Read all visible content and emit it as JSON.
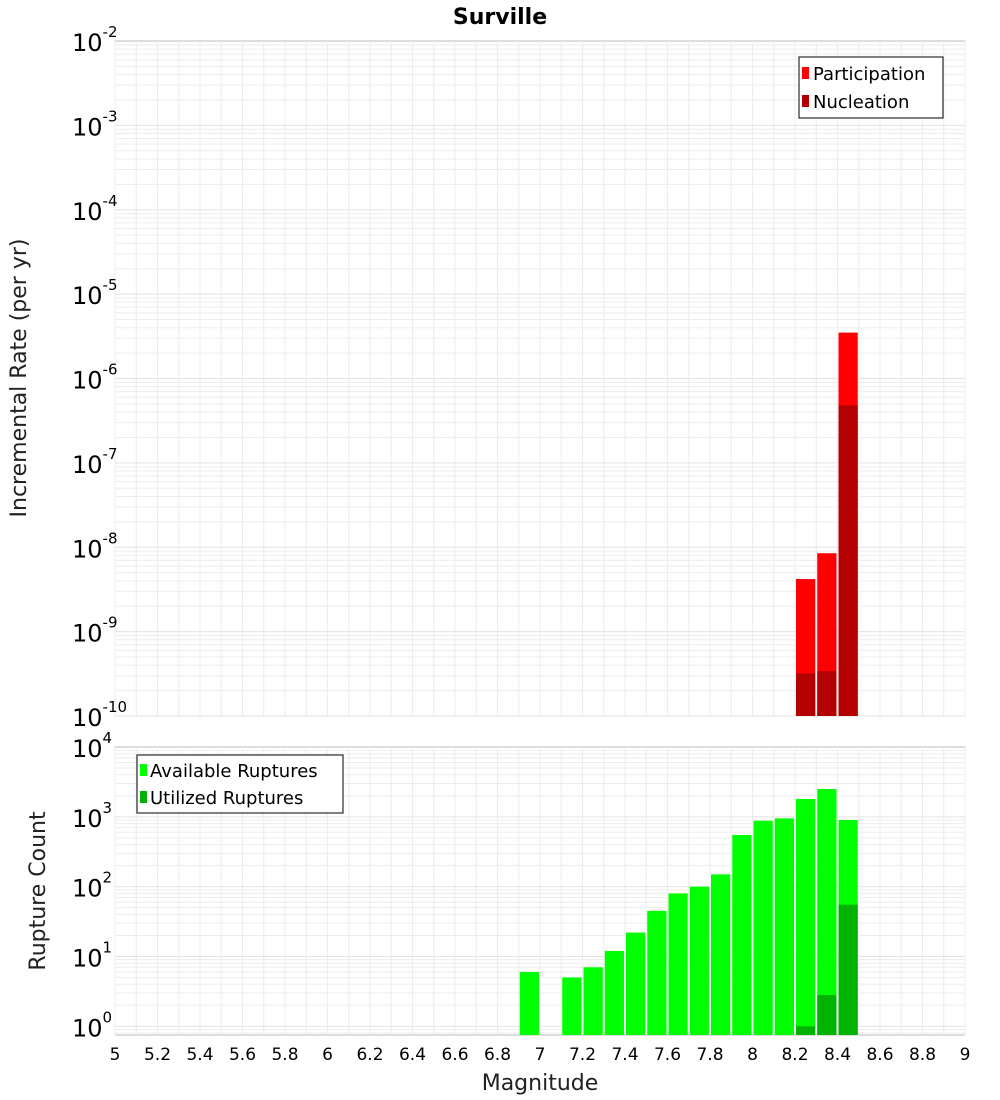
{
  "chart_data": [
    {
      "type": "bar",
      "title": "Surville",
      "ylabel": "Incremental Rate (per yr)",
      "yscale": "log",
      "ylim": [
        1e-10,
        0.01
      ],
      "xlim": [
        5,
        9
      ],
      "grid": true,
      "legend_position": "top-right",
      "bin_width": 0.1,
      "x": [
        8.3,
        8.4,
        8.5
      ],
      "series": [
        {
          "name": "Participation",
          "color": "#ff0000",
          "values": [
            4.2e-09,
            8.5e-09,
            3.5e-06
          ]
        },
        {
          "name": "Nucleation",
          "color": "#b30000",
          "values": [
            3.2e-10,
            3.4e-10,
            4.8e-07
          ]
        }
      ]
    },
    {
      "type": "bar",
      "ylabel": "Rupture Count",
      "xlabel": "Magnitude",
      "yscale": "log",
      "ylim": [
        0.75,
        10000
      ],
      "xlim": [
        5,
        9
      ],
      "grid": true,
      "legend_position": "top-left",
      "bin_width": 0.1,
      "xticks": [
        "5",
        "5.2",
        "5.4",
        "5.6",
        "5.8",
        "6",
        "6.2",
        "6.4",
        "6.6",
        "6.8",
        "7",
        "7.2",
        "7.4",
        "7.6",
        "7.8",
        "8",
        "8.2",
        "8.4",
        "8.6",
        "8.8",
        "9"
      ],
      "series": [
        {
          "name": "Available Ruptures",
          "color": "#00ff00",
          "x": [
            7.0,
            7.2,
            7.3,
            7.4,
            7.5,
            7.6,
            7.7,
            7.8,
            7.9,
            8.0,
            8.1,
            8.2,
            8.3,
            8.4,
            8.5
          ],
          "values": [
            6,
            5,
            7,
            12,
            22,
            45,
            80,
            100,
            150,
            550,
            880,
            950,
            1800,
            2500,
            900
          ]
        },
        {
          "name": "Utilized Ruptures",
          "color": "#00b300",
          "x": [
            8.3,
            8.4,
            8.5
          ],
          "values": [
            1,
            2.8,
            55
          ]
        }
      ]
    }
  ]
}
